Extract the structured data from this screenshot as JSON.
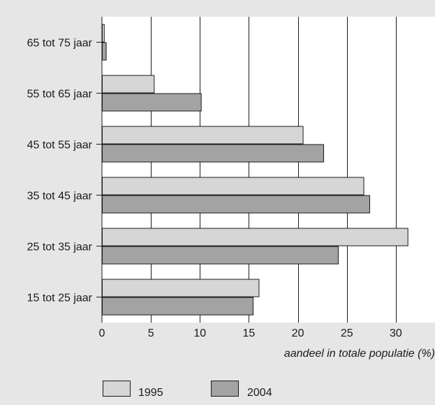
{
  "chart_data": {
    "type": "bar",
    "orientation": "horizontal",
    "title": "",
    "ylabel": "",
    "xlabel": "aandeel in totale populatie (%)",
    "xlim": [
      0,
      35
    ],
    "xticks": [
      0,
      5,
      10,
      15,
      20,
      25,
      30,
      35
    ],
    "grid": true,
    "legend_position": "bottom-left",
    "categories": [
      "65 tot 75 jaar",
      "55 tot 65 jaar",
      "45 tot 55 jaar",
      "35 tot 45 jaar",
      "25 tot 35 jaar",
      "15 tot 25 jaar"
    ],
    "series": [
      {
        "name": "1995",
        "color": "#d6d6d6",
        "values": [
          0.2,
          5.3,
          20.5,
          26.7,
          31.2,
          16.0
        ]
      },
      {
        "name": "2004",
        "color": "#a3a3a3",
        "values": [
          0.4,
          10.1,
          22.6,
          27.3,
          24.1,
          15.4
        ]
      }
    ],
    "background_color": "#e6e6e6",
    "plot_background_color": "#ffffff"
  }
}
